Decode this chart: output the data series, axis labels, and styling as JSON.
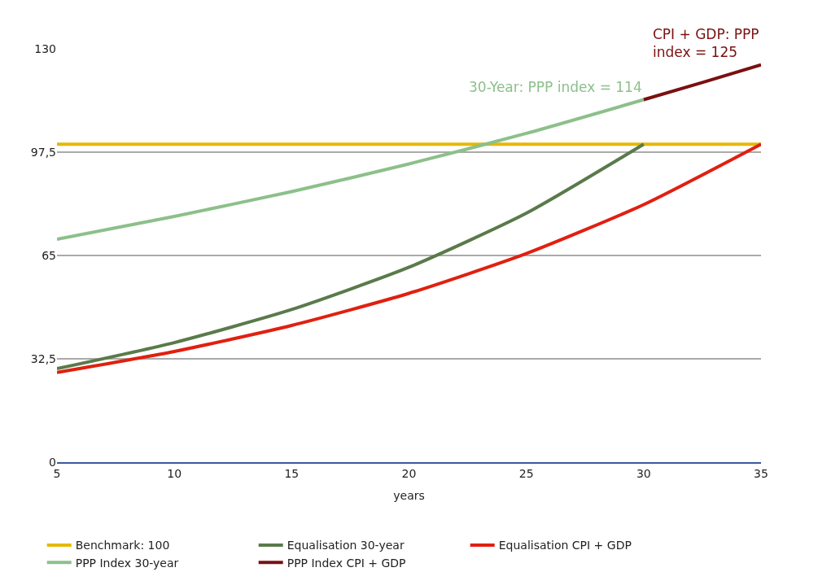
{
  "chart_data": {
    "type": "line",
    "xlabel": "years",
    "xlim": [
      5,
      35
    ],
    "xticks": [
      5,
      10,
      15,
      20,
      25,
      30,
      35
    ],
    "ylim": [
      0,
      130
    ],
    "yticks": [
      0,
      {
        "value": 32.5,
        "label": "32,5"
      },
      65,
      {
        "value": 97.5,
        "label": "97,5"
      },
      130
    ],
    "grid": "y",
    "legend": "bottom",
    "marker": "none",
    "line_style": "solid",
    "series": [
      {
        "name": "Benchmark: 100",
        "color": "#e6b800",
        "x": [
          5,
          35
        ],
        "values": [
          100,
          100
        ]
      },
      {
        "name": "Equalisation 30-year",
        "color": "#5a7a4a",
        "x": [
          5,
          10,
          15,
          20,
          25,
          30
        ],
        "values": [
          29.4,
          37.6,
          48.0,
          61.3,
          78.3,
          100
        ]
      },
      {
        "name": "Equalisation CPI + GDP",
        "color": "#e02010",
        "x": [
          5,
          10,
          15,
          20,
          25,
          30,
          35
        ],
        "values": [
          28.2,
          34.8,
          43.0,
          53.1,
          65.6,
          81.0,
          100
        ]
      },
      {
        "name": "PPP Index 30-year",
        "color": "#8cc08a",
        "x": [
          5,
          10,
          15,
          20,
          25,
          30
        ],
        "values": [
          70.1,
          77.3,
          85.1,
          93.8,
          103.4,
          114
        ]
      },
      {
        "name": "PPP Index CPI + GDP",
        "color": "#7a1010",
        "x": [
          30,
          32.5,
          35
        ],
        "values": [
          114,
          119.4,
          125
        ]
      }
    ],
    "annotations": [
      {
        "text": "30-Year: PPP index = 114",
        "x": 30,
        "y": 114
      },
      {
        "text": "CPI + GDP: PPP index = 125",
        "x": 35,
        "y": 125
      }
    ]
  }
}
